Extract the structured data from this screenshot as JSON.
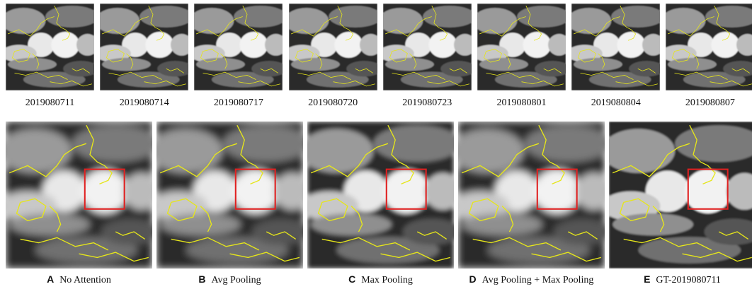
{
  "top_row": {
    "images": [
      {
        "label": "2019080711"
      },
      {
        "label": "2019080714"
      },
      {
        "label": "2019080717"
      },
      {
        "label": "2019080720"
      },
      {
        "label": "2019080723"
      },
      {
        "label": "2019080801"
      },
      {
        "label": "2019080804"
      },
      {
        "label": "2019080807"
      }
    ]
  },
  "bottom_row": {
    "panels": [
      {
        "letter": "A",
        "caption": "No Attention"
      },
      {
        "letter": "B",
        "caption": "Avg Pooling"
      },
      {
        "letter": "C",
        "caption": "Max Pooling"
      },
      {
        "letter": "D",
        "caption": "Avg Pooling + Max Pooling"
      },
      {
        "letter": "E",
        "caption": "GT-2019080711"
      }
    ]
  }
}
